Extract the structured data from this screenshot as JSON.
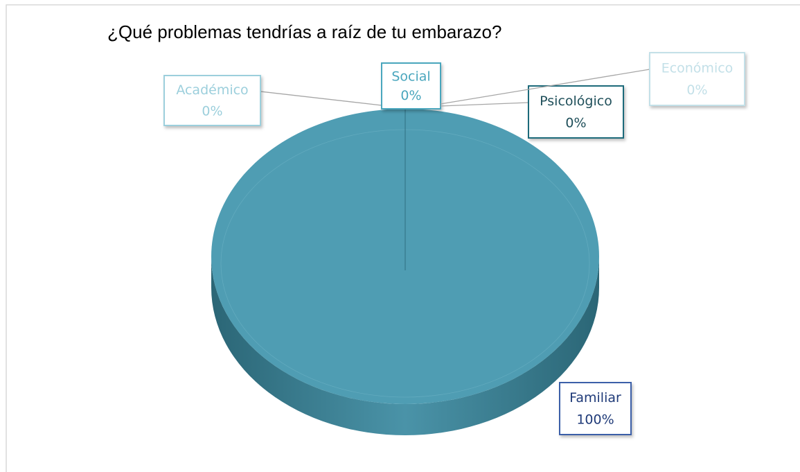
{
  "chart_data": {
    "type": "pie",
    "title": "¿Qué problemas tendrías a raíz de tu embarazo?",
    "categories": [
      "Académico",
      "Social",
      "Psicológico",
      "Económico",
      "Familiar"
    ],
    "values": [
      0,
      0,
      0,
      0,
      100
    ],
    "value_labels": [
      "0%",
      "0%",
      "0%",
      "0%",
      "100%"
    ],
    "colors": [
      "#9ccfdc",
      "#4aa6bd",
      "#1f6b7a",
      "#c3e0e8",
      "#3b5fa8"
    ],
    "style": "3d"
  }
}
